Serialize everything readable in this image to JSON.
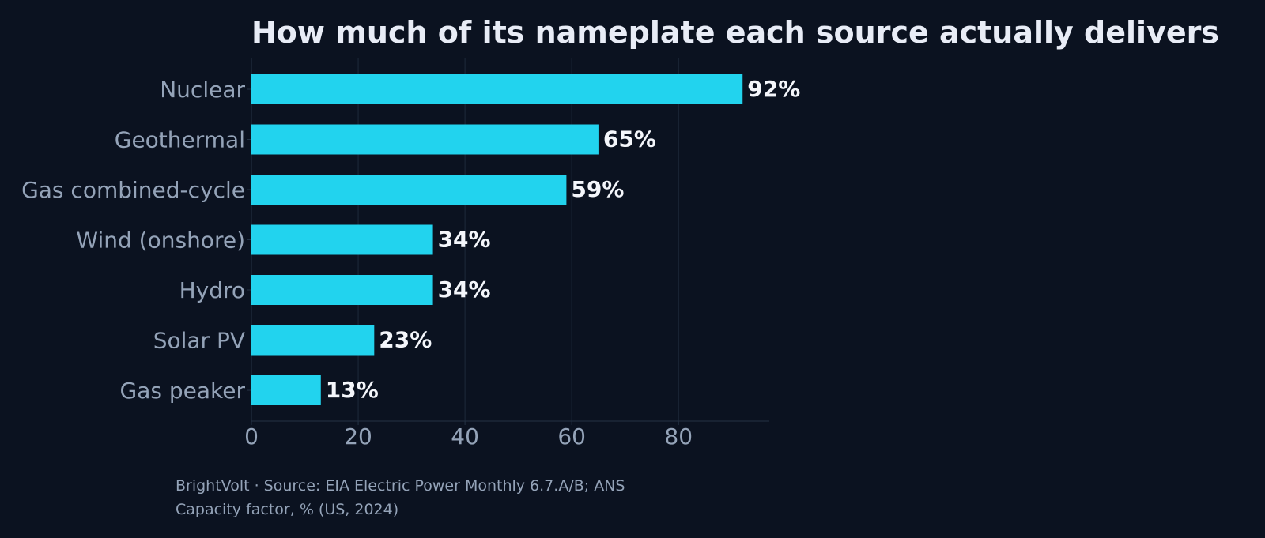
{
  "chart_data": {
    "type": "bar",
    "orientation": "horizontal",
    "title": "How much of its nameplate each source actually delivers",
    "xlabel": "",
    "ylabel": "",
    "categories": [
      "Nuclear",
      "Geothermal",
      "Gas combined-cycle",
      "Wind (onshore)",
      "Hydro",
      "Solar PV",
      "Gas peaker"
    ],
    "values": [
      92,
      65,
      59,
      34,
      34,
      23,
      13
    ],
    "value_labels": [
      "92%",
      "65%",
      "59%",
      "34%",
      "34%",
      "23%",
      "13%"
    ],
    "xlim": [
      0,
      97
    ],
    "x_ticks": [
      0,
      20,
      40,
      60,
      80
    ],
    "x_tick_labels": [
      "0",
      "20",
      "40",
      "60",
      "80"
    ],
    "grid": "vertical",
    "legend": "none"
  },
  "footer": {
    "source": "BrightVolt  ·  Source: EIA Electric Power Monthly 6.7.A/B; ANS",
    "note": "Capacity factor, % (US, 2024)"
  },
  "colors": {
    "background": "#0b1220",
    "bar": "#22d3ee",
    "title": "#e8ecf6",
    "value_label": "#f4f6fb",
    "category_label": "#94a3b8",
    "tick_label": "#94a3b8",
    "grid": "#1e2a3b",
    "axis": "#243244"
  }
}
